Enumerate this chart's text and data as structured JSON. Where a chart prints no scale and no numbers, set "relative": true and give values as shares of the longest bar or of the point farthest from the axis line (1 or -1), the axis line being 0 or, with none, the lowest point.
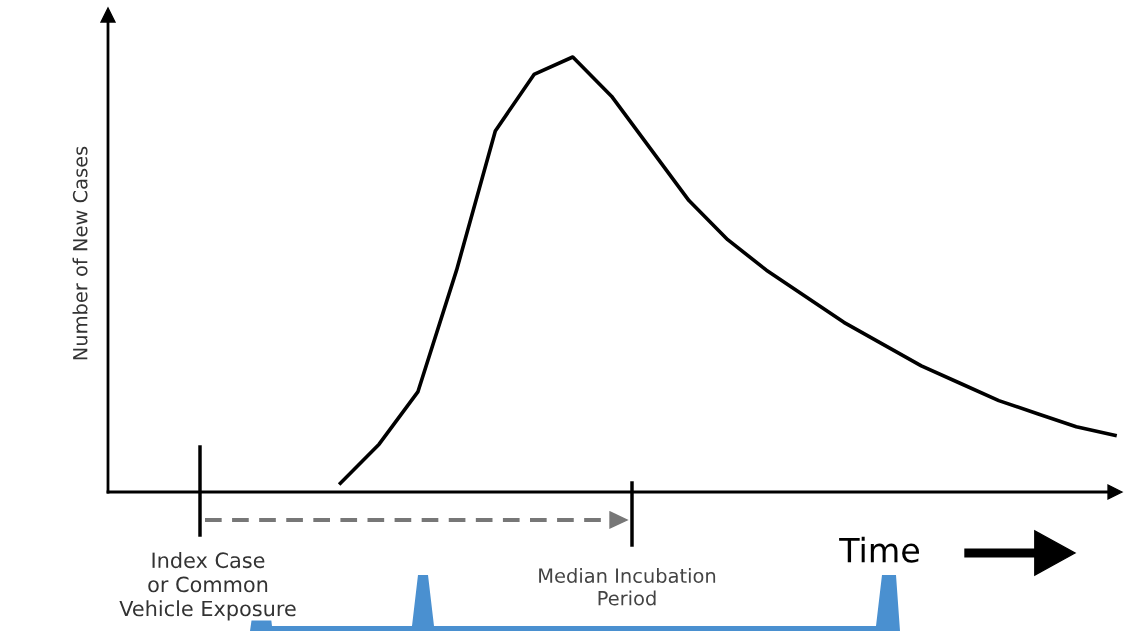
{
  "chart_data": {
    "type": "line",
    "relative": true,
    "ylabel": "Number of New Cases",
    "color": "#000000",
    "categories": [
      null,
      null,
      null,
      null,
      null,
      null,
      null,
      null,
      null,
      null,
      null,
      null,
      null,
      null,
      null,
      null,
      null,
      null,
      null,
      null,
      null,
      null,
      null,
      null,
      null,
      null,
      null
    ],
    "values": [
      null,
      null,
      null,
      null,
      null,
      null,
      0.02,
      0.11,
      0.23,
      0.51,
      0.83,
      0.96,
      1.0,
      0.91,
      0.79,
      0.67,
      0.58,
      0.51,
      0.45,
      0.39,
      0.34,
      0.29,
      0.25,
      0.21,
      0.18,
      0.15,
      0.13
    ],
    "annotations": [
      "Index Case\nor Common\nVehicle Exposure",
      "Median Incubation\nPeriod",
      "Time"
    ]
  }
}
